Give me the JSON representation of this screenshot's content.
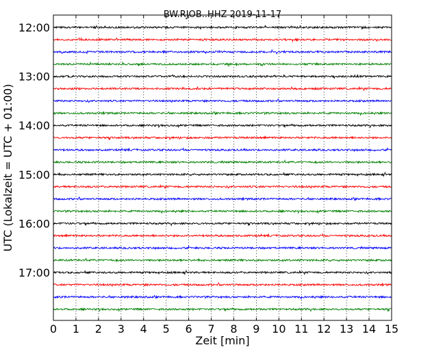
{
  "chart_data": {
    "type": "line",
    "title": "BW.RJOB..HHZ 2019-11-17",
    "xlabel": "Zeit  [min]",
    "ylabel": "UTC (Lokalzeit = UTC + 01:00)",
    "xlim": [
      0,
      15
    ],
    "x_ticks": [
      "0",
      "1",
      "2",
      "3",
      "4",
      "5",
      "6",
      "7",
      "8",
      "9",
      "10",
      "11",
      "12",
      "13",
      "14",
      "15"
    ],
    "y_tick_labels": [
      "12:00",
      "13:00",
      "14:00",
      "15:00",
      "16:00",
      "17:00"
    ],
    "grid": "vertical dotted",
    "trace_start_times": [
      "12:00",
      "12:15",
      "12:30",
      "12:45",
      "13:00",
      "13:15",
      "13:30",
      "13:45",
      "14:00",
      "14:15",
      "14:30",
      "14:45",
      "15:00",
      "15:15",
      "15:30",
      "15:45",
      "16:00",
      "16:15",
      "16:30",
      "16:45",
      "17:00",
      "17:15",
      "17:30",
      "17:45"
    ],
    "trace_colors": [
      "#000000",
      "#ff0000",
      "#0000ff",
      "#008000"
    ]
  }
}
